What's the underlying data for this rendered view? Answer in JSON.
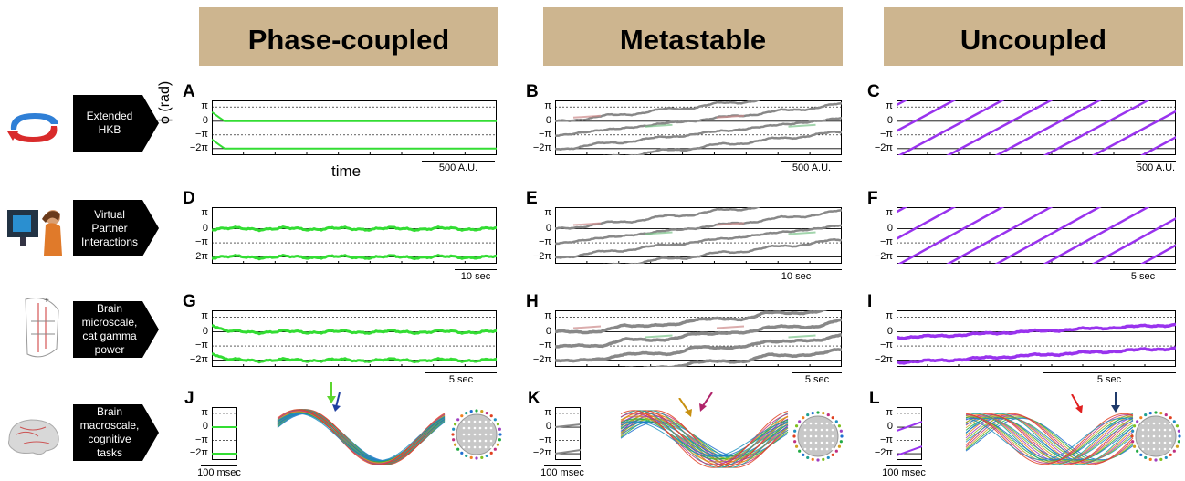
{
  "columns": [
    {
      "title": "Phase-coupled"
    },
    {
      "title": "Metastable"
    },
    {
      "title": "Uncoupled"
    }
  ],
  "rows": [
    {
      "label_lines": [
        "Extended",
        "HKB"
      ],
      "icon": "hkb-rotating-arrows-icon"
    },
    {
      "label_lines": [
        "Virtual",
        "Partner",
        "Interactions"
      ],
      "icon": "person-at-monitor-icon"
    },
    {
      "label_lines": [
        "Brain",
        "microscale,",
        "cat gamma",
        "power"
      ],
      "icon": "electrode-array-sketch-icon"
    },
    {
      "label_lines": [
        "Brain",
        "macroscale,",
        "cognitive",
        "tasks"
      ],
      "icon": "brain-icon"
    }
  ],
  "panels": [
    {
      "letter": "A",
      "scale": "500 A.U."
    },
    {
      "letter": "B",
      "scale": "500 A.U."
    },
    {
      "letter": "C",
      "scale": "500 A.U."
    },
    {
      "letter": "D",
      "scale": "10 sec"
    },
    {
      "letter": "E",
      "scale": "10 sec"
    },
    {
      "letter": "F",
      "scale": "5 sec"
    },
    {
      "letter": "G",
      "scale": "5 sec"
    },
    {
      "letter": "H",
      "scale": "5 sec"
    },
    {
      "letter": "I",
      "scale": "5 sec"
    },
    {
      "letter": "J",
      "scale": "100 msec"
    },
    {
      "letter": "K",
      "scale": "100 msec"
    },
    {
      "letter": "L",
      "scale": "100 msec"
    }
  ],
  "y_ticks": [
    "π",
    "0",
    "−π",
    "−2π"
  ],
  "y_axis_label": "ϕ (rad)",
  "x_axis_label": "time",
  "colors": {
    "coupled": "#33dd33",
    "metastable": "#888888",
    "metastable_red": "#cc8a8a",
    "metastable_green": "#7bc48a",
    "uncoupled": "#9933ee",
    "header_bg": "#cdb58f"
  },
  "arrows": [
    "green-arrow-icon",
    "blue-arrow-icon",
    "orange-arrow-icon",
    "magenta-arrow-icon",
    "red-arrow-icon",
    "navy-arrow-icon"
  ]
}
